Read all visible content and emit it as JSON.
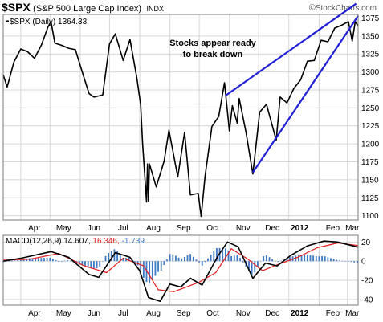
{
  "header": {
    "symbol": "$SPX",
    "name": "(S&P 500 Large Cap Index)",
    "exchange": "INDX",
    "watermark_copy": "©",
    "watermark": "StockCharts.com"
  },
  "colors": {
    "price_line": "#000000",
    "trendline": "#1f1fd6",
    "macd_line": "#000000",
    "signal_line": "#e31b1b",
    "histogram": "#3d78c4",
    "grid": "#d6d6d6",
    "frame": "#7a7a7a"
  },
  "chart_data": [
    {
      "type": "line",
      "legend": "$SPX (Daily) 1364.33",
      "annotation": "Stocks appear ready to break down",
      "x_labels": [
        "Apr",
        "May",
        "Jun",
        "Jul",
        "Aug",
        "Sep",
        "Oct",
        "Nov",
        "Dec",
        "2012",
        "Feb",
        "Mar"
      ],
      "y_ticks": [
        1100,
        1125,
        1150,
        1175,
        1200,
        1225,
        1250,
        1275,
        1300,
        1325,
        1350,
        1375
      ],
      "ylim": [
        1094,
        1380
      ],
      "x_range": [
        "2011-03-14",
        "2012-03-12"
      ],
      "grid": true,
      "series": [
        {
          "values": [
            {
              "x": "2011-03-14",
              "y": 1296
            },
            {
              "x": "2011-03-18",
              "y": 1279
            },
            {
              "x": "2011-03-25",
              "y": 1314
            },
            {
              "x": "2011-04-01",
              "y": 1332
            },
            {
              "x": "2011-04-08",
              "y": 1328
            },
            {
              "x": "2011-04-15",
              "y": 1319
            },
            {
              "x": "2011-04-22",
              "y": 1337
            },
            {
              "x": "2011-04-29",
              "y": 1363
            },
            {
              "x": "2011-05-02",
              "y": 1370
            },
            {
              "x": "2011-05-06",
              "y": 1340
            },
            {
              "x": "2011-05-13",
              "y": 1337
            },
            {
              "x": "2011-05-20",
              "y": 1333
            },
            {
              "x": "2011-05-27",
              "y": 1331
            },
            {
              "x": "2011-06-03",
              "y": 1300
            },
            {
              "x": "2011-06-10",
              "y": 1270
            },
            {
              "x": "2011-06-15",
              "y": 1265
            },
            {
              "x": "2011-06-24",
              "y": 1268
            },
            {
              "x": "2011-07-01",
              "y": 1339
            },
            {
              "x": "2011-07-07",
              "y": 1353
            },
            {
              "x": "2011-07-15",
              "y": 1316
            },
            {
              "x": "2011-07-22",
              "y": 1345
            },
            {
              "x": "2011-07-29",
              "y": 1292
            },
            {
              "x": "2011-08-02",
              "y": 1254
            },
            {
              "x": "2011-08-04",
              "y": 1200
            },
            {
              "x": "2011-08-08",
              "y": 1119
            },
            {
              "x": "2011-08-09",
              "y": 1172
            },
            {
              "x": "2011-08-10",
              "y": 1120
            },
            {
              "x": "2011-08-11",
              "y": 1172
            },
            {
              "x": "2011-08-18",
              "y": 1140
            },
            {
              "x": "2011-08-26",
              "y": 1176
            },
            {
              "x": "2011-08-31",
              "y": 1219
            },
            {
              "x": "2011-09-09",
              "y": 1154
            },
            {
              "x": "2011-09-16",
              "y": 1216
            },
            {
              "x": "2011-09-22",
              "y": 1129
            },
            {
              "x": "2011-09-30",
              "y": 1131
            },
            {
              "x": "2011-10-03",
              "y": 1099
            },
            {
              "x": "2011-10-07",
              "y": 1155
            },
            {
              "x": "2011-10-14",
              "y": 1224
            },
            {
              "x": "2011-10-21",
              "y": 1238
            },
            {
              "x": "2011-10-27",
              "y": 1285
            },
            {
              "x": "2011-11-01",
              "y": 1218
            },
            {
              "x": "2011-11-04",
              "y": 1253
            },
            {
              "x": "2011-11-09",
              "y": 1229
            },
            {
              "x": "2011-11-11",
              "y": 1263
            },
            {
              "x": "2011-11-18",
              "y": 1216
            },
            {
              "x": "2011-11-25",
              "y": 1158
            },
            {
              "x": "2011-12-02",
              "y": 1244
            },
            {
              "x": "2011-12-09",
              "y": 1255
            },
            {
              "x": "2011-12-19",
              "y": 1205
            },
            {
              "x": "2011-12-23",
              "y": 1265
            },
            {
              "x": "2011-12-30",
              "y": 1257
            },
            {
              "x": "2012-01-06",
              "y": 1277
            },
            {
              "x": "2012-01-13",
              "y": 1289
            },
            {
              "x": "2012-01-20",
              "y": 1315
            },
            {
              "x": "2012-01-27",
              "y": 1316
            },
            {
              "x": "2012-02-03",
              "y": 1344
            },
            {
              "x": "2012-02-10",
              "y": 1342
            },
            {
              "x": "2012-02-17",
              "y": 1361
            },
            {
              "x": "2012-02-24",
              "y": 1365
            },
            {
              "x": "2012-03-02",
              "y": 1370
            },
            {
              "x": "2012-03-06",
              "y": 1343
            },
            {
              "x": "2012-03-09",
              "y": 1370
            },
            {
              "x": "2012-03-12",
              "y": 1364
            }
          ]
        }
      ],
      "trendlines": [
        {
          "from": {
            "x": "2011-10-28",
            "y": 1267
          },
          "to": {
            "x": "2012-03-10",
            "y": 1395
          }
        },
        {
          "from": {
            "x": "2011-11-25",
            "y": 1160
          },
          "to": {
            "x": "2012-03-12",
            "y": 1378
          }
        }
      ]
    },
    {
      "type": "line",
      "legend": {
        "label": "MACD(12,26,9)",
        "macd": "14.607",
        "signal": "16.346",
        "histogram": "-1.739"
      },
      "x_labels": [
        "Apr",
        "May",
        "Jun",
        "Jul",
        "Aug",
        "Sep",
        "Oct",
        "Nov",
        "Dec",
        "2012",
        "Feb",
        "Mar"
      ],
      "y_ticks": [
        -40,
        -20,
        0,
        20
      ],
      "ylim": [
        -46,
        27
      ],
      "series": [
        {
          "name": "MACD",
          "values": [
            {
              "x": "2011-03-14",
              "y": 0
            },
            {
              "x": "2011-04-01",
              "y": 3
            },
            {
              "x": "2011-05-02",
              "y": 10
            },
            {
              "x": "2011-05-20",
              "y": 4
            },
            {
              "x": "2011-06-10",
              "y": -14
            },
            {
              "x": "2011-06-20",
              "y": -17
            },
            {
              "x": "2011-07-07",
              "y": 9
            },
            {
              "x": "2011-07-22",
              "y": 4
            },
            {
              "x": "2011-08-01",
              "y": -10
            },
            {
              "x": "2011-08-10",
              "y": -38
            },
            {
              "x": "2011-08-22",
              "y": -42
            },
            {
              "x": "2011-09-01",
              "y": -24
            },
            {
              "x": "2011-09-12",
              "y": -27
            },
            {
              "x": "2011-09-22",
              "y": -18
            },
            {
              "x": "2011-10-04",
              "y": -25
            },
            {
              "x": "2011-10-20",
              "y": 5
            },
            {
              "x": "2011-10-30",
              "y": 20
            },
            {
              "x": "2011-11-10",
              "y": 15
            },
            {
              "x": "2011-11-25",
              "y": -18
            },
            {
              "x": "2011-12-08",
              "y": -2
            },
            {
              "x": "2011-12-20",
              "y": -5
            },
            {
              "x": "2012-01-03",
              "y": 6
            },
            {
              "x": "2012-01-20",
              "y": 16
            },
            {
              "x": "2012-02-06",
              "y": 21
            },
            {
              "x": "2012-02-20",
              "y": 20
            },
            {
              "x": "2012-03-12",
              "y": 14.607
            }
          ]
        },
        {
          "name": "Signal",
          "values": [
            {
              "x": "2011-03-14",
              "y": 1
            },
            {
              "x": "2011-04-10",
              "y": 2
            },
            {
              "x": "2011-05-10",
              "y": 8
            },
            {
              "x": "2011-06-05",
              "y": -5
            },
            {
              "x": "2011-06-28",
              "y": -12
            },
            {
              "x": "2011-07-15",
              "y": 3
            },
            {
              "x": "2011-08-05",
              "y": -5
            },
            {
              "x": "2011-08-20",
              "y": -30
            },
            {
              "x": "2011-09-05",
              "y": -32
            },
            {
              "x": "2011-10-01",
              "y": -22
            },
            {
              "x": "2011-10-18",
              "y": -12
            },
            {
              "x": "2011-11-03",
              "y": 13
            },
            {
              "x": "2011-11-20",
              "y": 2
            },
            {
              "x": "2011-12-05",
              "y": -10
            },
            {
              "x": "2011-12-22",
              "y": -3
            },
            {
              "x": "2012-01-10",
              "y": 4
            },
            {
              "x": "2012-01-30",
              "y": 14
            },
            {
              "x": "2012-02-20",
              "y": 19
            },
            {
              "x": "2012-03-12",
              "y": 16.346
            }
          ]
        }
      ]
    }
  ]
}
